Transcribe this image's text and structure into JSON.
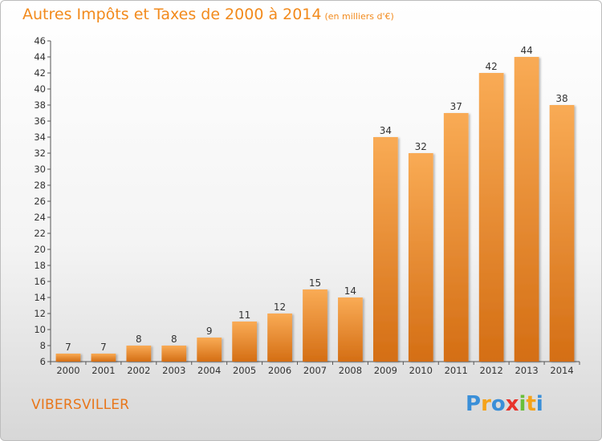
{
  "header": {
    "title": "Autres Impôts et Taxes de 2000 à 2014",
    "subtitle": "(en milliers d'€)"
  },
  "footer": {
    "commune": "VIBERSVILLER",
    "logo_text": "Proxiti"
  },
  "colors": {
    "bar_light": "#f9ab55",
    "bar_dark": "#d46e14",
    "title": "#f28a1c"
  },
  "chart_data": {
    "type": "bar",
    "title": "Autres Impôts et Taxes de 2000 à 2014",
    "subtitle": "(en milliers d'€)",
    "categories": [
      "2000",
      "2001",
      "2002",
      "2003",
      "2004",
      "2005",
      "2006",
      "2007",
      "2008",
      "2009",
      "2010",
      "2011",
      "2012",
      "2013",
      "2014"
    ],
    "values": [
      7,
      7,
      8,
      8,
      9,
      11,
      12,
      15,
      14,
      34,
      32,
      37,
      42,
      44,
      38
    ],
    "ylim": [
      6,
      46
    ],
    "yticks": [
      6,
      8,
      10,
      12,
      14,
      16,
      18,
      20,
      22,
      24,
      26,
      28,
      30,
      32,
      34,
      36,
      38,
      40,
      42,
      44,
      46
    ],
    "grid": false,
    "data_labels": true,
    "xlabel": "",
    "ylabel": ""
  }
}
